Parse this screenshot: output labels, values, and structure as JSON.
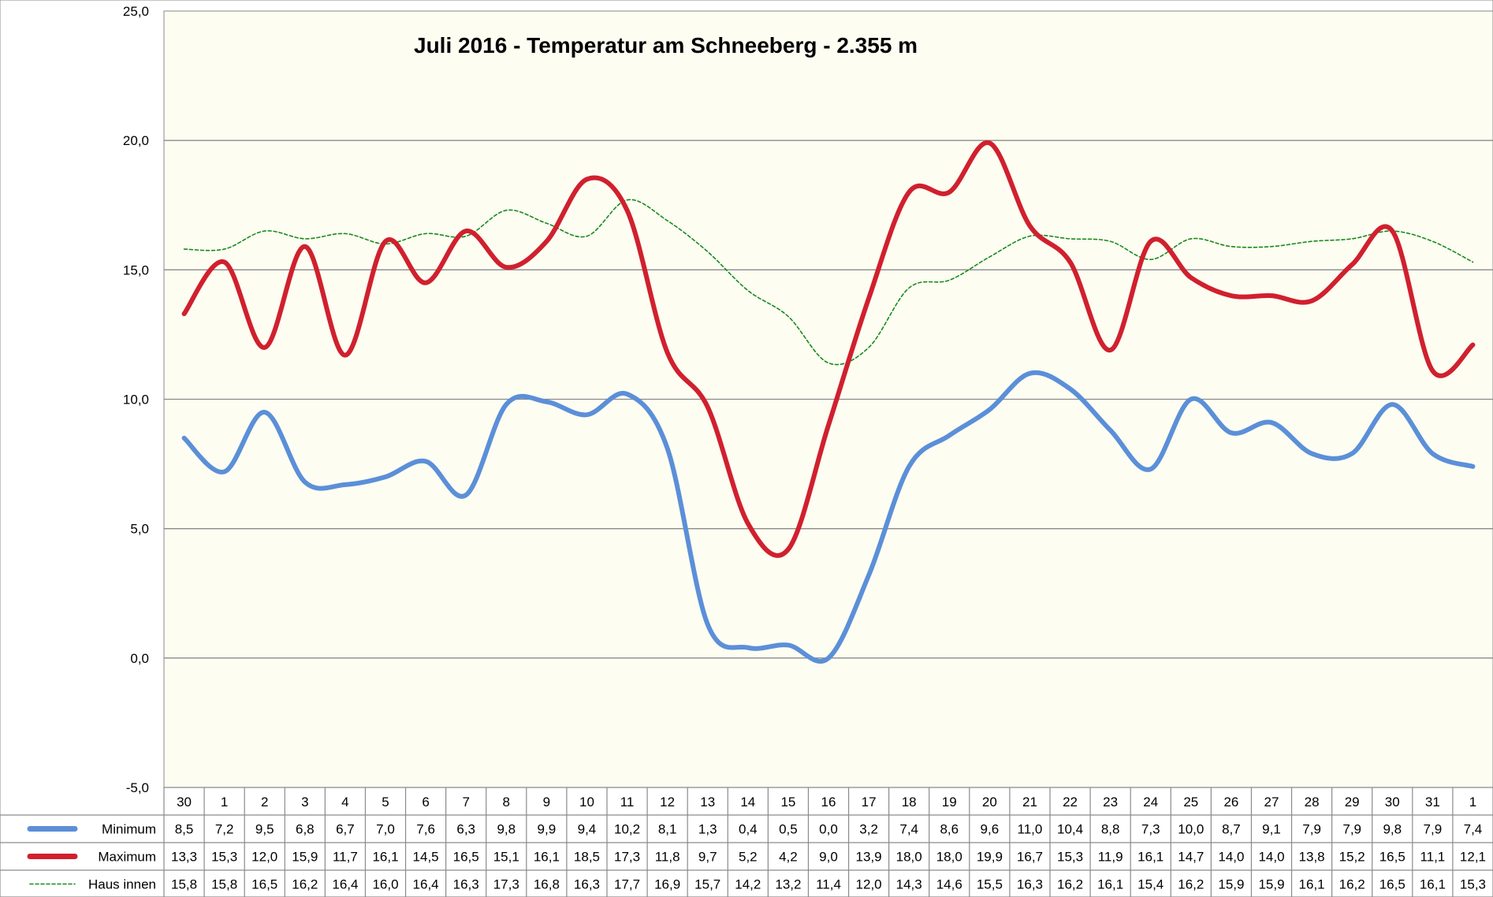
{
  "chart_data": {
    "type": "line",
    "title": "Juli 2016 - Temperatur am Schneeberg - 2.355 m",
    "categories": [
      "30",
      "1",
      "2",
      "3",
      "4",
      "5",
      "6",
      "7",
      "8",
      "9",
      "10",
      "11",
      "12",
      "13",
      "14",
      "15",
      "16",
      "17",
      "18",
      "19",
      "20",
      "21",
      "22",
      "23",
      "24",
      "25",
      "26",
      "27",
      "28",
      "29",
      "30",
      "31",
      "1"
    ],
    "ylim": [
      -5,
      25
    ],
    "yticks": [
      "25,0",
      "20,0",
      "15,0",
      "10,0",
      "5,0",
      "0,0",
      "-5,0"
    ],
    "grid": true,
    "legend": "data-table-below",
    "series": [
      {
        "name": "Minimum",
        "color": "#5B8FD8",
        "style": "solid-thick",
        "values": [
          8.5,
          7.2,
          9.5,
          6.8,
          6.7,
          7.0,
          7.6,
          6.3,
          9.8,
          9.9,
          9.4,
          10.2,
          8.1,
          1.3,
          0.4,
          0.5,
          0.0,
          3.2,
          7.4,
          8.6,
          9.6,
          11.0,
          10.4,
          8.8,
          7.3,
          10.0,
          8.7,
          9.1,
          7.9,
          7.9,
          9.8,
          7.9,
          7.4
        ],
        "labels": [
          "8,5",
          "7,2",
          "9,5",
          "6,8",
          "6,7",
          "7,0",
          "7,6",
          "6,3",
          "9,8",
          "9,9",
          "9,4",
          "10,2",
          "8,1",
          "1,3",
          "0,4",
          "0,5",
          "0,0",
          "3,2",
          "7,4",
          "8,6",
          "9,6",
          "11,0",
          "10,4",
          "8,8",
          "7,3",
          "10,0",
          "8,7",
          "9,1",
          "7,9",
          "7,9",
          "9,8",
          "7,9",
          "7,4"
        ]
      },
      {
        "name": "Maximum",
        "color": "#D0202E",
        "style": "solid-thick",
        "values": [
          13.3,
          15.3,
          12.0,
          15.9,
          11.7,
          16.1,
          14.5,
          16.5,
          15.1,
          16.1,
          18.5,
          17.3,
          11.8,
          9.7,
          5.2,
          4.2,
          9.0,
          13.9,
          18.0,
          18.0,
          19.9,
          16.7,
          15.3,
          11.9,
          16.1,
          14.7,
          14.0,
          14.0,
          13.8,
          15.2,
          16.5,
          11.1,
          12.1
        ],
        "labels": [
          "13,3",
          "15,3",
          "12,0",
          "15,9",
          "11,7",
          "16,1",
          "14,5",
          "16,5",
          "15,1",
          "16,1",
          "18,5",
          "17,3",
          "11,8",
          "9,7",
          "5,2",
          "4,2",
          "9,0",
          "13,9",
          "18,0",
          "18,0",
          "19,9",
          "16,7",
          "15,3",
          "11,9",
          "16,1",
          "14,7",
          "14,0",
          "14,0",
          "13,8",
          "15,2",
          "16,5",
          "11,1",
          "12,1"
        ]
      },
      {
        "name": "Haus innen",
        "color": "#1A8A1A",
        "style": "dashed-thin",
        "values": [
          15.8,
          15.8,
          16.5,
          16.2,
          16.4,
          16.0,
          16.4,
          16.3,
          17.3,
          16.8,
          16.3,
          17.7,
          16.9,
          15.7,
          14.2,
          13.2,
          11.4,
          12.0,
          14.3,
          14.6,
          15.5,
          16.3,
          16.2,
          16.1,
          15.4,
          16.2,
          15.9,
          15.9,
          16.1,
          16.2,
          16.5,
          16.1,
          15.3
        ],
        "labels": [
          "15,8",
          "15,8",
          "16,5",
          "16,2",
          "16,4",
          "16,0",
          "16,4",
          "16,3",
          "17,3",
          "16,8",
          "16,3",
          "17,7",
          "16,9",
          "15,7",
          "14,2",
          "13,2",
          "11,4",
          "12,0",
          "14,3",
          "14,6",
          "15,5",
          "16,3",
          "16,2",
          "16,1",
          "15,4",
          "16,2",
          "15,9",
          "15,9",
          "16,1",
          "16,2",
          "16,5",
          "16,1",
          "15,3"
        ]
      }
    ]
  }
}
